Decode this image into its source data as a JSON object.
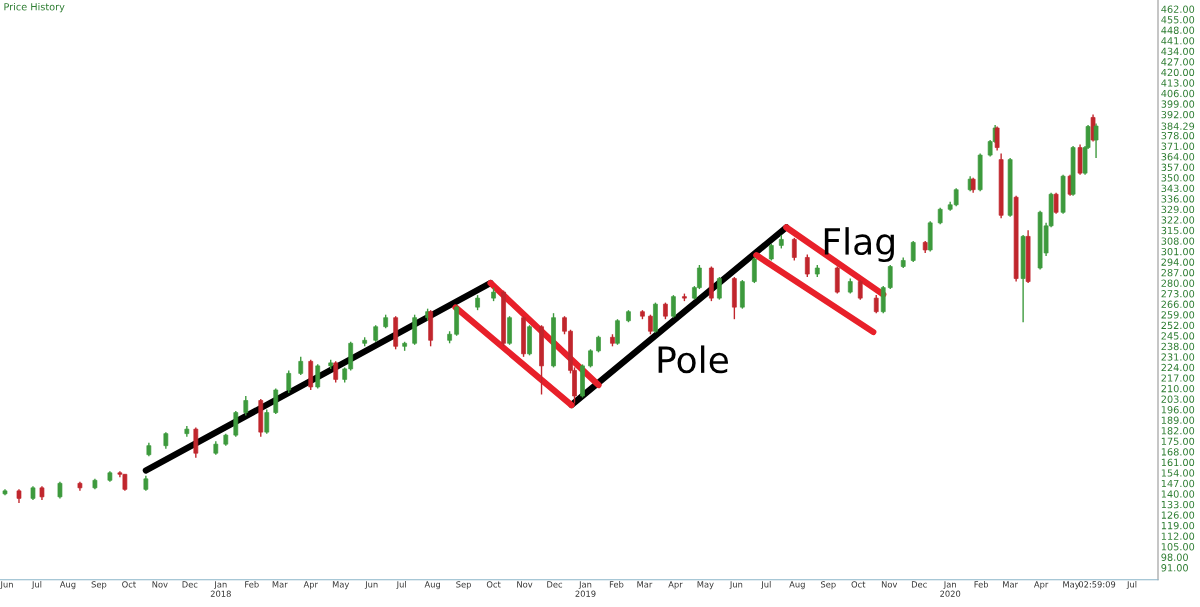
{
  "chart_data": {
    "type": "candlestick",
    "title": "Price History",
    "x": [
      "2017-05-30",
      "2017-06-13",
      "2017-06-27",
      "2017-07-06",
      "2017-07-24",
      "2017-08-13",
      "2017-08-28",
      "2017-09-12",
      "2017-09-22",
      "2017-09-27",
      "2017-10-18",
      "2017-10-21",
      "2017-11-07",
      "2017-11-28",
      "2017-12-07",
      "2017-12-27",
      "2018-01-06",
      "2018-01-16",
      "2018-01-26",
      "2018-02-10",
      "2018-02-16",
      "2018-02-25",
      "2018-03-10",
      "2018-03-22",
      "2018-04-01",
      "2018-04-08",
      "2018-04-21",
      "2018-04-26",
      "2018-05-05",
      "2018-05-11",
      "2018-05-25",
      "2018-06-05",
      "2018-06-15",
      "2018-06-25",
      "2018-07-04",
      "2018-07-14",
      "2018-07-27",
      "2018-07-30",
      "2018-08-18",
      "2018-08-25",
      "2018-09-15",
      "2018-10-01",
      "2018-10-11",
      "2018-10-17",
      "2018-10-31",
      "2018-11-06",
      "2018-11-18",
      "2018-11-30",
      "2018-12-11",
      "2018-12-17",
      "2018-12-21",
      "2018-12-29",
      "2019-01-06",
      "2019-01-14",
      "2019-01-28",
      "2019-02-02",
      "2019-02-13",
      "2019-02-27",
      "2019-03-07",
      "2019-03-12",
      "2019-03-22",
      "2019-03-30",
      "2019-04-10",
      "2019-04-20",
      "2019-04-25",
      "2019-05-07",
      "2019-05-15",
      "2019-05-30",
      "2019-06-07",
      "2019-06-19",
      "2019-07-06",
      "2019-07-16",
      "2019-07-29",
      "2019-08-11",
      "2019-08-21",
      "2019-09-10",
      "2019-09-23",
      "2019-10-03",
      "2019-10-19",
      "2019-10-26",
      "2019-11-02",
      "2019-11-15",
      "2019-11-25",
      "2019-12-07",
      "2019-12-12",
      "2019-12-22",
      "2020-01-01",
      "2020-01-07",
      "2020-01-21",
      "2020-01-24",
      "2020-01-31",
      "2020-02-10",
      "2020-02-15",
      "2020-02-17",
      "2020-02-21",
      "2020-03-01",
      "2020-03-07",
      "2020-03-14",
      "2020-03-19",
      "2020-03-31",
      "2020-04-06",
      "2020-04-11",
      "2020-04-16",
      "2020-04-23",
      "2020-04-30",
      "2020-05-03",
      "2020-05-10",
      "2020-05-15",
      "2020-05-18",
      "2020-05-23",
      "2020-05-26"
    ],
    "ohlc": [
      [
        140,
        143,
        139,
        142
      ],
      [
        142,
        143,
        134,
        137
      ],
      [
        137,
        145,
        136,
        144
      ],
      [
        144,
        145,
        136,
        138
      ],
      [
        138,
        148,
        137,
        147
      ],
      [
        147,
        148,
        142,
        144
      ],
      [
        144,
        150,
        143,
        149
      ],
      [
        149,
        155,
        148,
        154
      ],
      [
        154,
        155,
        151,
        153
      ],
      [
        153,
        153,
        142,
        143
      ],
      [
        143,
        152,
        142,
        150
      ],
      [
        166,
        174,
        165,
        172
      ],
      [
        172,
        181,
        170,
        180
      ],
      [
        180,
        185,
        178,
        183
      ],
      [
        183,
        184,
        164,
        167
      ],
      [
        167,
        175,
        166,
        173
      ],
      [
        173,
        180,
        172,
        179
      ],
      [
        179,
        195,
        178,
        194
      ],
      [
        194,
        205,
        192,
        202
      ],
      [
        202,
        203,
        178,
        181
      ],
      [
        181,
        196,
        180,
        194
      ],
      [
        194,
        210,
        193,
        209
      ],
      [
        209,
        222,
        207,
        220
      ],
      [
        220,
        231,
        219,
        228
      ],
      [
        228,
        229,
        209,
        211
      ],
      [
        211,
        226,
        210,
        225
      ],
      [
        225,
        229,
        223,
        227
      ],
      [
        227,
        228,
        214,
        216
      ],
      [
        216,
        224,
        214,
        223
      ],
      [
        223,
        241,
        222,
        240
      ],
      [
        240,
        244,
        238,
        242
      ],
      [
        242,
        252,
        241,
        251
      ],
      [
        251,
        259,
        250,
        257
      ],
      [
        257,
        258,
        236,
        238
      ],
      [
        238,
        241,
        235,
        240
      ],
      [
        240,
        259,
        239,
        257
      ],
      [
        257,
        263,
        255,
        261
      ],
      [
        261,
        262,
        238,
        242
      ],
      [
        242,
        248,
        240,
        246
      ],
      [
        246,
        265,
        245,
        264
      ],
      [
        264,
        272,
        262,
        270
      ],
      [
        270,
        277,
        268,
        274
      ],
      [
        274,
        275,
        238,
        240
      ],
      [
        240,
        258,
        239,
        257
      ],
      [
        257,
        258,
        231,
        233
      ],
      [
        233,
        252,
        232,
        251
      ],
      [
        251,
        252,
        206,
        225
      ],
      [
        225,
        260,
        224,
        257
      ],
      [
        257,
        258,
        246,
        248
      ],
      [
        248,
        249,
        220,
        222
      ],
      [
        222,
        224,
        200,
        205
      ],
      [
        205,
        226,
        204,
        225
      ],
      [
        225,
        236,
        224,
        235
      ],
      [
        235,
        245,
        234,
        244
      ],
      [
        244,
        246,
        238,
        240
      ],
      [
        240,
        256,
        239,
        255
      ],
      [
        255,
        262,
        254,
        261
      ],
      [
        261,
        262,
        256,
        258
      ],
      [
        258,
        259,
        246,
        248
      ],
      [
        248,
        267,
        247,
        266
      ],
      [
        266,
        267,
        256,
        258
      ],
      [
        258,
        272,
        257,
        271
      ],
      [
        271,
        273,
        268,
        270
      ],
      [
        270,
        278,
        269,
        277
      ],
      [
        277,
        292,
        276,
        290
      ],
      [
        290,
        291,
        268,
        270
      ],
      [
        270,
        284,
        269,
        283
      ],
      [
        283,
        284,
        256,
        264
      ],
      [
        264,
        282,
        263,
        281
      ],
      [
        281,
        297,
        280,
        296
      ],
      [
        296,
        306,
        295,
        305
      ],
      [
        305,
        312,
        303,
        309
      ],
      [
        309,
        310,
        295,
        297
      ],
      [
        297,
        299,
        284,
        286
      ],
      [
        286,
        292,
        284,
        290
      ],
      [
        290,
        291,
        273,
        274
      ],
      [
        274,
        283,
        273,
        281
      ],
      [
        281,
        282,
        269,
        270
      ],
      [
        270,
        272,
        260,
        261
      ],
      [
        261,
        278,
        260,
        277
      ],
      [
        277,
        292,
        276,
        291
      ],
      [
        291,
        297,
        290,
        295
      ],
      [
        295,
        308,
        294,
        307
      ],
      [
        307,
        308,
        300,
        302
      ],
      [
        302,
        321,
        301,
        320
      ],
      [
        320,
        330,
        319,
        329
      ],
      [
        329,
        334,
        328,
        332
      ],
      [
        332,
        343,
        331,
        342
      ],
      [
        342,
        351,
        341,
        349
      ],
      [
        349,
        350,
        340,
        342
      ],
      [
        342,
        366,
        341,
        365
      ],
      [
        365,
        375,
        364,
        374
      ],
      [
        374,
        385,
        373,
        383
      ],
      [
        383,
        384,
        368,
        370
      ],
      [
        362,
        366,
        323,
        325
      ],
      [
        325,
        363,
        324,
        362
      ],
      [
        337,
        338,
        281,
        283
      ],
      [
        283,
        312,
        254,
        311
      ],
      [
        311,
        315,
        280,
        281
      ],
      [
        290,
        328,
        289,
        327
      ],
      [
        300,
        320,
        298,
        318
      ],
      [
        318,
        340,
        317,
        339
      ],
      [
        339,
        340,
        326,
        327
      ],
      [
        327,
        352,
        326,
        351
      ],
      [
        351,
        352,
        338,
        339
      ],
      [
        339,
        371,
        338,
        370
      ],
      [
        370,
        372,
        352,
        353
      ],
      [
        353,
        371,
        352,
        370
      ],
      [
        370,
        385,
        369,
        384
      ],
      [
        390,
        392,
        374,
        375
      ],
      [
        375,
        386,
        363,
        384.29
      ]
    ],
    "colors": [
      "#3d9a3d",
      "#c0262d",
      "#3d9a3d",
      "#c0262d",
      "#3d9a3d",
      "#c0262d",
      "#3d9a3d",
      "#3d9a3d",
      "#c0262d",
      "#c0262d",
      "#3d9a3d",
      "#3d9a3d",
      "#3d9a3d",
      "#3d9a3d",
      "#c0262d",
      "#3d9a3d",
      "#3d9a3d",
      "#3d9a3d",
      "#3d9a3d",
      "#c0262d",
      "#3d9a3d",
      "#3d9a3d",
      "#3d9a3d",
      "#3d9a3d",
      "#c0262d",
      "#3d9a3d",
      "#3d9a3d",
      "#c0262d",
      "#3d9a3d",
      "#3d9a3d",
      "#3d9a3d",
      "#3d9a3d",
      "#3d9a3d",
      "#c0262d",
      "#3d9a3d",
      "#3d9a3d",
      "#3d9a3d",
      "#c0262d",
      "#3d9a3d",
      "#3d9a3d",
      "#3d9a3d",
      "#3d9a3d",
      "#c0262d",
      "#3d9a3d",
      "#c0262d",
      "#3d9a3d",
      "#c0262d",
      "#3d9a3d",
      "#c0262d",
      "#c0262d",
      "#c0262d",
      "#3d9a3d",
      "#3d9a3d",
      "#3d9a3d",
      "#c0262d",
      "#3d9a3d",
      "#3d9a3d",
      "#c0262d",
      "#c0262d",
      "#3d9a3d",
      "#c0262d",
      "#3d9a3d",
      "#c0262d",
      "#3d9a3d",
      "#3d9a3d",
      "#c0262d",
      "#3d9a3d",
      "#c0262d",
      "#3d9a3d",
      "#3d9a3d",
      "#3d9a3d",
      "#3d9a3d",
      "#c0262d",
      "#c0262d",
      "#3d9a3d",
      "#c0262d",
      "#3d9a3d",
      "#c0262d",
      "#c0262d",
      "#3d9a3d",
      "#3d9a3d",
      "#3d9a3d",
      "#3d9a3d",
      "#c0262d",
      "#3d9a3d",
      "#3d9a3d",
      "#3d9a3d",
      "#3d9a3d",
      "#3d9a3d",
      "#c0262d",
      "#3d9a3d",
      "#3d9a3d",
      "#3d9a3d",
      "#c0262d",
      "#c0262d",
      "#3d9a3d",
      "#c0262d",
      "#3d9a3d",
      "#c0262d",
      "#3d9a3d",
      "#3d9a3d",
      "#3d9a3d",
      "#c0262d",
      "#3d9a3d",
      "#c0262d",
      "#3d9a3d",
      "#c0262d",
      "#3d9a3d",
      "#3d9a3d",
      "#c0262d",
      "#3d9a3d"
    ],
    "series": [
      {
        "type": "line",
        "color": "#000000",
        "x": [
          "2017-10-18",
          "2018-09-28"
        ],
        "values": [
          155.5,
          280
        ]
      },
      {
        "type": "line",
        "color": "#000000",
        "x": [
          "2018-12-18",
          "2019-07-21"
        ],
        "values": [
          199,
          317
        ]
      },
      {
        "type": "line",
        "color": "#e8202a",
        "x": [
          "2018-09-28",
          "2019-01-14"
        ],
        "values": [
          280,
          212.3
        ]
      },
      {
        "type": "line",
        "color": "#e8202a",
        "x": [
          "2018-08-24",
          "2018-12-18"
        ],
        "values": [
          263.8,
          199
        ]
      },
      {
        "type": "line",
        "color": "#e8202a",
        "x": [
          "2019-07-21",
          "2019-10-26"
        ],
        "values": [
          317,
          272.4
        ]
      },
      {
        "type": "line",
        "color": "#e8202a",
        "x": [
          "2019-06-21",
          "2019-10-16"
        ],
        "values": [
          298.5,
          247.5
        ]
      }
    ],
    "annotations": [
      "Pole",
      "Flag"
    ],
    "xlim": [
      "2017-05-25",
      "2020-07-27"
    ],
    "xticks": [
      {
        "value": "2017-06-01",
        "label": "Jun"
      },
      {
        "value": "2017-07-01",
        "label": "Jul"
      },
      {
        "value": "2017-08-01",
        "label": "Aug"
      },
      {
        "value": "2017-09-01",
        "label": "Sep"
      },
      {
        "value": "2017-10-01",
        "label": "Oct"
      },
      {
        "value": "2017-11-01",
        "label": "Nov"
      },
      {
        "value": "2017-12-01",
        "label": "Dec"
      },
      {
        "value": "2018-01-01",
        "label": "Jan\n2018"
      },
      {
        "value": "2018-02-01",
        "label": "Feb"
      },
      {
        "value": "2018-03-01",
        "label": "Mar"
      },
      {
        "value": "2018-04-01",
        "label": "Apr"
      },
      {
        "value": "2018-05-01",
        "label": "May"
      },
      {
        "value": "2018-06-01",
        "label": "Jun"
      },
      {
        "value": "2018-07-01",
        "label": "Jul"
      },
      {
        "value": "2018-08-01",
        "label": "Aug"
      },
      {
        "value": "2018-09-01",
        "label": "Sep"
      },
      {
        "value": "2018-10-01",
        "label": "Oct"
      },
      {
        "value": "2018-11-01",
        "label": "Nov"
      },
      {
        "value": "2018-12-01",
        "label": "Dec"
      },
      {
        "value": "2019-01-01",
        "label": "Jan\n2019"
      },
      {
        "value": "2019-02-01",
        "label": "Feb"
      },
      {
        "value": "2019-03-01",
        "label": "Mar"
      },
      {
        "value": "2019-04-01",
        "label": "Apr"
      },
      {
        "value": "2019-05-01",
        "label": "May"
      },
      {
        "value": "2019-06-01",
        "label": "Jun"
      },
      {
        "value": "2019-07-01",
        "label": "Jul"
      },
      {
        "value": "2019-08-01",
        "label": "Aug"
      },
      {
        "value": "2019-09-01",
        "label": "Sep"
      },
      {
        "value": "2019-10-01",
        "label": "Oct"
      },
      {
        "value": "2019-11-01",
        "label": "Nov"
      },
      {
        "value": "2019-12-01",
        "label": "Dec"
      },
      {
        "value": "2020-01-01",
        "label": "Jan\n2020"
      },
      {
        "value": "2020-02-01",
        "label": "Feb"
      },
      {
        "value": "2020-03-01",
        "label": "Mar"
      },
      {
        "value": "2020-04-01",
        "label": "Apr"
      },
      {
        "value": "2020-05-01",
        "label": "May"
      },
      {
        "value": "2020-05-27",
        "label": "02:59:09"
      },
      {
        "value": "2020-07-01",
        "label": "Jul"
      }
    ],
    "ylim": [
      83,
      468
    ],
    "yticks": [
      {
        "value": 462,
        "label": "462.00"
      },
      {
        "value": 455,
        "label": "455.00"
      },
      {
        "value": 448,
        "label": "448.00"
      },
      {
        "value": 441,
        "label": "441.00"
      },
      {
        "value": 434,
        "label": "434.00"
      },
      {
        "value": 427,
        "label": "427.00"
      },
      {
        "value": 420,
        "label": "420.00"
      },
      {
        "value": 413,
        "label": "413.00"
      },
      {
        "value": 406,
        "label": "406.00"
      },
      {
        "value": 399,
        "label": "399.00"
      },
      {
        "value": 392,
        "label": "392.00"
      },
      {
        "value": 384.29,
        "label": "384.29"
      },
      {
        "value": 378,
        "label": "378.00"
      },
      {
        "value": 371,
        "label": "371.00"
      },
      {
        "value": 364,
        "label": "364.00"
      },
      {
        "value": 357,
        "label": "357.00"
      },
      {
        "value": 350,
        "label": "350.00"
      },
      {
        "value": 343,
        "label": "343.00"
      },
      {
        "value": 336,
        "label": "336.00"
      },
      {
        "value": 329,
        "label": "329.00"
      },
      {
        "value": 322,
        "label": "322.00"
      },
      {
        "value": 315,
        "label": "315.00"
      },
      {
        "value": 308,
        "label": "308.00"
      },
      {
        "value": 301,
        "label": "301.00"
      },
      {
        "value": 294,
        "label": "294.00"
      },
      {
        "value": 287,
        "label": "287.00"
      },
      {
        "value": 280,
        "label": "280.00"
      },
      {
        "value": 273,
        "label": "273.00"
      },
      {
        "value": 266,
        "label": "266.00"
      },
      {
        "value": 259,
        "label": "259.00"
      },
      {
        "value": 252,
        "label": "252.00"
      },
      {
        "value": 245,
        "label": "245.00"
      },
      {
        "value": 238,
        "label": "238.00"
      },
      {
        "value": 231,
        "label": "231.00"
      },
      {
        "value": 224,
        "label": "224.00"
      },
      {
        "value": 217,
        "label": "217.00"
      },
      {
        "value": 210,
        "label": "210.00"
      },
      {
        "value": 203,
        "label": "203.00"
      },
      {
        "value": 196,
        "label": "196.00"
      },
      {
        "value": 189,
        "label": "189.00"
      },
      {
        "value": 182,
        "label": "182.00"
      },
      {
        "value": 175,
        "label": "175.00"
      },
      {
        "value": 168,
        "label": "168.00"
      },
      {
        "value": 161,
        "label": "161.00"
      },
      {
        "value": 154,
        "label": "154.00"
      },
      {
        "value": 147,
        "label": "147.00"
      },
      {
        "value": 140,
        "label": "140.00"
      },
      {
        "value": 133,
        "label": "133.00"
      },
      {
        "value": 126,
        "label": "126.00"
      },
      {
        "value": 119,
        "label": "119.00"
      },
      {
        "value": 112,
        "label": "112.00"
      },
      {
        "value": 105,
        "label": "105.00"
      },
      {
        "value": 98,
        "label": "98.00"
      },
      {
        "value": 91,
        "label": "91.00"
      }
    ]
  }
}
